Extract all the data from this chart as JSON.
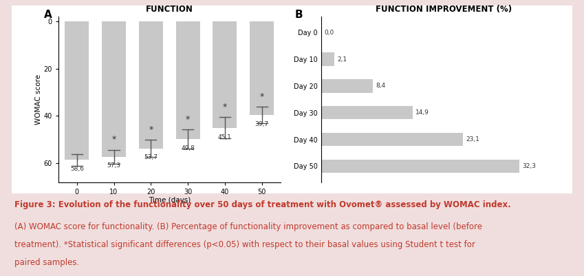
{
  "panel_A_title": "FUNCTION",
  "panel_B_title": "FUNCTION IMPROVEMENT (%)",
  "xlabel_A": "Time (days)",
  "ylabel_A": "WOMAC score",
  "days_A": [
    0,
    10,
    20,
    30,
    40,
    50
  ],
  "values_A": [
    58.6,
    57.3,
    53.7,
    49.8,
    45.1,
    39.7
  ],
  "errors_A": [
    2.5,
    3.0,
    3.5,
    4.0,
    4.5,
    3.5
  ],
  "significant_A": [
    false,
    true,
    true,
    true,
    true,
    true
  ],
  "labels_A": [
    "58,6",
    "57,3",
    "53,7",
    "49,8",
    "45,1",
    "39,7"
  ],
  "days_B": [
    "Day 0",
    "Day 10",
    "Day 20",
    "Day 30",
    "Day 40",
    "Day 50"
  ],
  "values_B": [
    0.0,
    2.1,
    8.4,
    14.9,
    23.1,
    32.3
  ],
  "labels_B": [
    "0,0",
    "2,1",
    "8,4",
    "14,9",
    "23,1",
    "32,3"
  ],
  "bar_color": "#c8c8c8",
  "bg_color": "#f0dede",
  "panel_bg": "#ffffff",
  "caption_bold": "Figure 3: Evolution of the functionality over 50 days of treatment with Ovomet® assessed by WOMAC index.",
  "caption_normal1": "(A) WOMAC score for functionality. (B) Percentage of functionality improvement as compared to basal level (before",
  "caption_normal2": "treatment). *Statistical significant differences (p<0.05) with respect to their basal values using Student t test for",
  "caption_normal3": "paired samples.",
  "caption_color": "#c0392b",
  "title_fontsize": 8.5,
  "label_fontsize": 7.5,
  "tick_fontsize": 7,
  "caption_fontsize": 8.5,
  "asterisk_fontsize": 9,
  "panel_label_fontsize": 11
}
